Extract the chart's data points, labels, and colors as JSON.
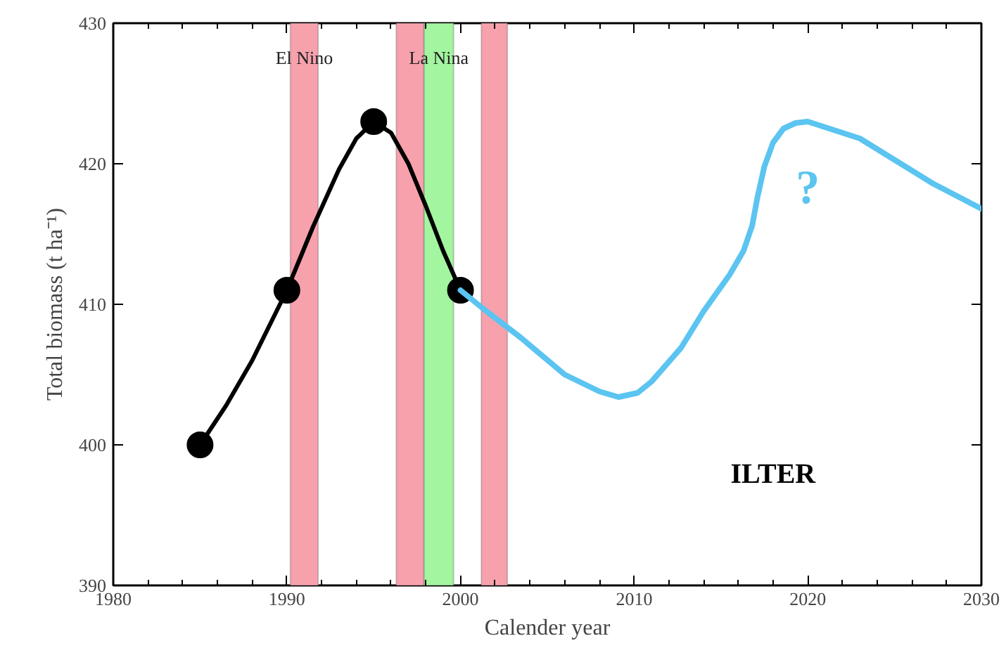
{
  "chart_data": {
    "type": "line",
    "xlabel": "Calender year",
    "ylabel": "Total biomass (t ha⁻¹)",
    "xlim": [
      1980,
      2030
    ],
    "ylim": [
      390,
      430
    ],
    "xticks": [
      1980,
      1990,
      2000,
      2010,
      2020,
      2030
    ],
    "yticks": [
      390,
      400,
      410,
      420,
      430
    ],
    "grid": false,
    "series": [
      {
        "color": "#000000",
        "marker": "none",
        "x": [
          1985,
          1986.5,
          1988,
          1990,
          1991.5,
          1993,
          1994,
          1995,
          1996,
          1997,
          1998,
          1999,
          2000
        ],
        "values": [
          400,
          402.8,
          406,
          411,
          415.5,
          419.6,
          421.8,
          423,
          422.2,
          420,
          417,
          413.8,
          411
        ]
      },
      {
        "type": "scatter",
        "color": "#000000",
        "marker": "circle",
        "x": [
          1985,
          1990,
          1995,
          2000
        ],
        "values": [
          400,
          411,
          423,
          411
        ]
      },
      {
        "color": "#5bc4f0",
        "marker": "none",
        "x": [
          2000,
          2001.5,
          2003.5,
          2006,
          2008,
          2009.1,
          2010.2,
          2011,
          2012.7,
          2014,
          2015.5,
          2016.3,
          2016.8,
          2017.1,
          2017.5,
          2018,
          2018.6,
          2019.3,
          2020,
          2023,
          2027.2,
          2030
        ],
        "values": [
          411,
          409.5,
          407.6,
          405,
          403.8,
          403.4,
          403.7,
          404.5,
          406.9,
          409.5,
          412.1,
          413.8,
          415.6,
          417.6,
          419.8,
          421.5,
          422.5,
          422.9,
          423,
          421.8,
          418.6,
          416.8
        ]
      }
    ],
    "bands": [
      {
        "axis": "x",
        "from": 1990.2,
        "to": 1991.8,
        "label": "El Nino",
        "color": "#f7a1ad"
      },
      {
        "axis": "x",
        "from": 1996.3,
        "to": 1997.9,
        "label": null,
        "color": "#f7a1ad"
      },
      {
        "axis": "x",
        "from": 1997.9,
        "to": 1999.6,
        "label": "La Nina",
        "color": "#a3f5a0"
      },
      {
        "axis": "x",
        "from": 2001.2,
        "to": 2002.7,
        "label": null,
        "color": "#f7a1ad"
      }
    ],
    "annotations": [
      "?",
      "ILTER"
    ]
  }
}
